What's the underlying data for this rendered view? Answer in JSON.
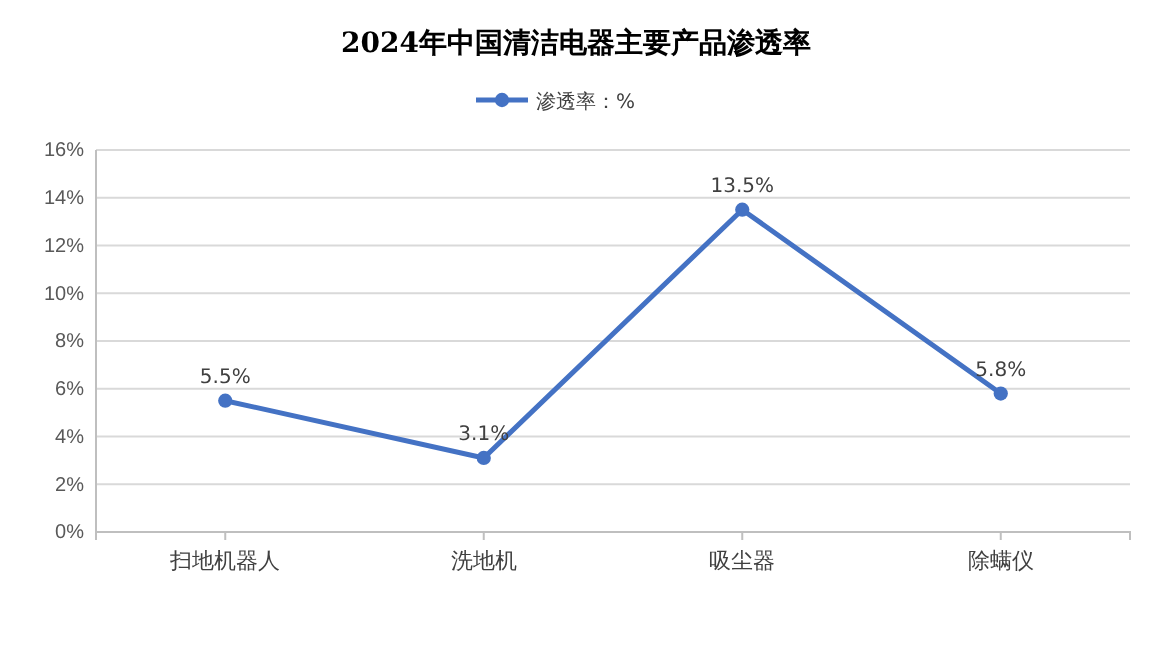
{
  "chart_data": {
    "type": "line",
    "title": "2024年中国清洁电器主要产品渗透率",
    "categories": [
      "扫地机器人",
      "洗地机",
      "吸尘器",
      "除螨仪"
    ],
    "series": [
      {
        "name": "渗透率：%",
        "color": "#4472c4",
        "values": [
          5.5,
          3.1,
          13.5,
          5.8
        ],
        "value_labels": [
          "5.5%",
          "3.1%",
          "13.5%",
          "5.8%"
        ]
      }
    ],
    "ylim": [
      0,
      16
    ],
    "yticks": [
      {
        "value": 0,
        "label": "0%"
      },
      {
        "value": 2,
        "label": "2%"
      },
      {
        "value": 4,
        "label": "4%"
      },
      {
        "value": 6,
        "label": "6%"
      },
      {
        "value": 8,
        "label": "8%"
      },
      {
        "value": 10,
        "label": "10%"
      },
      {
        "value": 12,
        "label": "12%"
      },
      {
        "value": 14,
        "label": "14%"
      },
      {
        "value": 16,
        "label": "16%"
      }
    ],
    "grid": "y",
    "legend": "top",
    "marker": "circle",
    "line_style": "solid"
  }
}
